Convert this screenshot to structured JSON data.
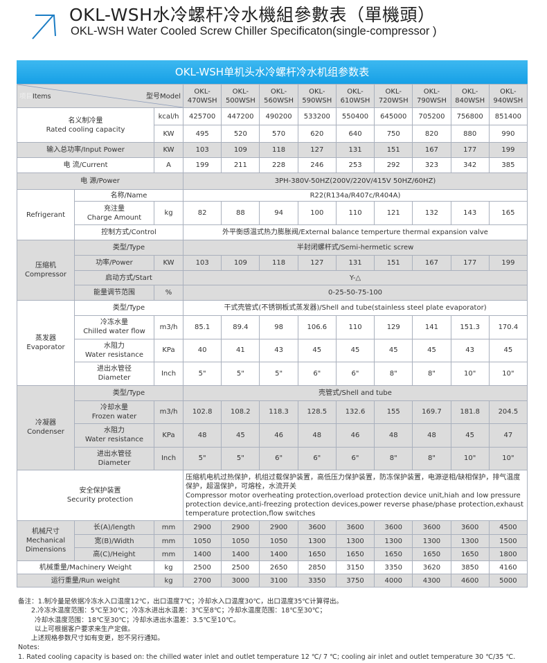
{
  "header": {
    "title_cn": "OKL-WSH水冷螺杆冷水機組參數表（單機頭）",
    "title_en": "OKL-WSH Water Cooled Screw Chiller Specificaton(single-compressor )",
    "icon": "arrow-up-right-icon"
  },
  "colors": {
    "title_bar": "#1aa3e8",
    "row_gray": "#dcdcdc",
    "border": "#a9b0bd"
  },
  "table": {
    "title": "OKL-WSH单机头水冷螺杆冷水机组参数表",
    "items_cn": "项目",
    "items_en": "Items",
    "model_label": "型号Model",
    "models": [
      {
        "prefix": "OKL-",
        "code": "470WSH"
      },
      {
        "prefix": "OKL-",
        "code": "500WSH"
      },
      {
        "prefix": "OKL-",
        "code": "560WSH"
      },
      {
        "prefix": "OKL-",
        "code": "590WSH"
      },
      {
        "prefix": "OKL-",
        "code": "610WSH"
      },
      {
        "prefix": "OKL-",
        "code": "720WSH"
      },
      {
        "prefix": "OKL-",
        "code": "790WSH"
      },
      {
        "prefix": "OKL-",
        "code": "840WSH"
      },
      {
        "prefix": "OKL-",
        "code": "940WSH"
      }
    ],
    "rated_cooling": {
      "label_cn": "名义制冷量",
      "label_en": "Rated cooling capacity",
      "rows": [
        {
          "unit": "kcal/h",
          "values": [
            "425700",
            "447200",
            "490200",
            "533200",
            "550400",
            "645000",
            "705200",
            "756800",
            "851400"
          ]
        },
        {
          "unit": "KW",
          "values": [
            "495",
            "520",
            "570",
            "620",
            "640",
            "750",
            "820",
            "880",
            "990"
          ]
        }
      ]
    },
    "input_power": {
      "label": "输入总功率/Input Power",
      "unit": "KW",
      "values": [
        "103",
        "109",
        "118",
        "127",
        "131",
        "151",
        "167",
        "177",
        "199"
      ]
    },
    "current": {
      "label": "电  流/Current",
      "unit": "A",
      "values": [
        "199",
        "211",
        "228",
        "246",
        "253",
        "292",
        "323",
        "342",
        "385"
      ]
    },
    "power_supply": {
      "label": "电      源/Power",
      "value": "3PH-380V-50HZ(200V/220V/415V  50HZ/60HZ)"
    },
    "refrigerant": {
      "group": "Refrigerant",
      "name": {
        "label": "名称/Name",
        "value": "R22(R134a/R407c/R404A)"
      },
      "charge": {
        "label_cn": "充注量",
        "label_en": "Charge Amount",
        "unit": "kg",
        "values": [
          "82",
          "88",
          "94",
          "100",
          "110",
          "121",
          "132",
          "143",
          "165"
        ]
      },
      "control": {
        "label": "控制方式/Control",
        "value": "外平衡感温式热力膨胀阀/External balance temperture thermal expansion valve"
      }
    },
    "compressor": {
      "group_cn": "压缩机",
      "group_en": "Compressor",
      "type": {
        "label": "类型/Type",
        "value": "半封闭螺杆式/Semi-hermetic screw"
      },
      "power": {
        "label": "功率/Power",
        "unit": "KW",
        "values": [
          "103",
          "109",
          "118",
          "127",
          "131",
          "151",
          "167",
          "177",
          "199"
        ]
      },
      "start": {
        "label": "启动方式/Start",
        "value": "Y-△"
      },
      "capacity_range": {
        "label": "能量调节范围",
        "unit": "%",
        "value": "0-25-50-75-100"
      }
    },
    "evaporator": {
      "group_cn": "蒸发器",
      "group_en": "Evaporator",
      "type": {
        "label": "类型/Type",
        "value": "干式壳管式(不锈钢板式蒸发器)/Shell and tube(stainless steel plate evaporator)"
      },
      "flow": {
        "label_cn": "冷冻水量",
        "label_en": "Chilled water flow",
        "unit": "m3/h",
        "values": [
          "85.1",
          "89.4",
          "98",
          "106.6",
          "110",
          "129",
          "141",
          "151.3",
          "170.4"
        ]
      },
      "resistance": {
        "label_cn": "水阻力",
        "label_en": "Water resistance",
        "unit": "KPa",
        "values": [
          "40",
          "41",
          "43",
          "45",
          "45",
          "45",
          "45",
          "43",
          "45"
        ]
      },
      "diameter": {
        "label_cn": "进出水管径",
        "label_en": "Diameter",
        "unit": "Inch",
        "values": [
          "5\"",
          "5\"",
          "5\"",
          "6\"",
          "6\"",
          "8\"",
          "8\"",
          "10\"",
          "10\""
        ]
      }
    },
    "condenser": {
      "group_cn": "冷凝器",
      "group_en": "Condenser",
      "type": {
        "label": "类型/Type",
        "value": "壳管式/Shell and tube"
      },
      "flow": {
        "label_cn": "冷却水量",
        "label_en": "Frozen water",
        "unit": "m3/h",
        "values": [
          "102.8",
          "108.2",
          "118.3",
          "128.5",
          "132.6",
          "155",
          "169.7",
          "181.8",
          "204.5"
        ]
      },
      "resistance": {
        "label_cn": "水阻力",
        "label_en": "Water resistance",
        "unit": "KPa",
        "values": [
          "48",
          "45",
          "46",
          "48",
          "46",
          "48",
          "48",
          "45",
          "47"
        ]
      },
      "diameter": {
        "label_cn": "进出水管径",
        "label_en": "Diameter",
        "unit": "Inch",
        "values": [
          "5\"",
          "5\"",
          "6\"",
          "6\"",
          "6\"",
          "8\"",
          "8\"",
          "10\"",
          "10\""
        ]
      }
    },
    "security": {
      "label_cn": "安全保护装置",
      "label_en": "Security protection",
      "text_cn": "压缩机电机过热保护，机组过载保护装置，高低压力保护装置，防冻保护装置，电源逆相/缺相保护，排气温度保护，超温保护，可熔栓，水流开关",
      "text_en": "Compressor motor overheating protection,overload protection device unit,hiah and low pressure protection device,anti-freezing protection devices,power reverse phase/phase protection,exhaust temperature protection,flow switches"
    },
    "mechanical": {
      "group_cn": "机械尺寸",
      "group_en1": "Mechanical",
      "group_en2": "Dimensions",
      "length": {
        "label": "长(A)/length",
        "unit": "mm",
        "values": [
          "2900",
          "2900",
          "2900",
          "3600",
          "3600",
          "3600",
          "3600",
          "3600",
          "4500"
        ]
      },
      "width": {
        "label": "宽(B)/Width",
        "unit": "mm",
        "values": [
          "1050",
          "1050",
          "1050",
          "1300",
          "1300",
          "1300",
          "1300",
          "1300",
          "1500"
        ]
      },
      "height": {
        "label": "高(C)/Height",
        "unit": "mm",
        "values": [
          "1400",
          "1400",
          "1400",
          "1650",
          "1650",
          "1650",
          "1650",
          "1650",
          "1800"
        ]
      }
    },
    "machinery_weight": {
      "label": "机械重量/Machinery Weight",
      "unit": "kg",
      "values": [
        "2500",
        "2500",
        "2650",
        "2850",
        "3150",
        "3350",
        "3620",
        "3850",
        "4160"
      ]
    },
    "run_weight": {
      "label": "运行重量/Run weight",
      "unit": "kg",
      "values": [
        "2700",
        "3000",
        "3100",
        "3350",
        "3750",
        "4000",
        "4300",
        "4600",
        "5000"
      ]
    }
  },
  "notes": {
    "cn": [
      "备注：1.制冷量是依据冷冻水入口温度12℃，出口温度7℃；冷却水入口温度30℃，出口温度35℃计算得出。",
      "2.冷冻水温度范围：5℃至30℃；冷冻水进出水温差：3℃至8℃；冷却水温度范围：18℃至30℃；",
      "冷却水温度范围：18℃至30℃；冷却水进出水温差：3.5℃至10℃。",
      "以上可根据客户要求来生产定做。",
      "上述规格参数尺寸如有变更，恕不另行通知。"
    ],
    "en_title": "Notes:",
    "en": [
      "1. Rated cooling capacity is based on: the chilled water inlet and outlet temperature 12 ℃/ 7 ℃; cooling air inlet and outlet temperature 30 ℃/35 ℃."
    ]
  }
}
